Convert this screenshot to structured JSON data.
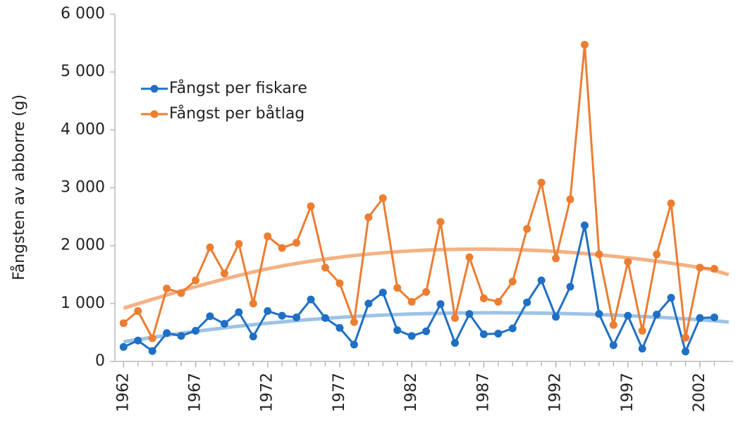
{
  "chart_data": {
    "type": "line",
    "ylabel": "Fångsten av abborre (g)",
    "x": [
      1962,
      1963,
      1964,
      1965,
      1966,
      1967,
      1968,
      1969,
      1970,
      1971,
      1972,
      1973,
      1974,
      1975,
      1976,
      1977,
      1978,
      1979,
      1980,
      1981,
      1982,
      1983,
      1984,
      1985,
      1986,
      1987,
      1988,
      1989,
      1990,
      1991,
      1992,
      1993,
      1994,
      1995,
      1996,
      1997,
      1998,
      1999,
      2000,
      2001,
      2002,
      2003
    ],
    "xlim": [
      1961.4,
      2004.3
    ],
    "xticks": [
      1962,
      1967,
      1972,
      1977,
      1982,
      1987,
      1992,
      1997,
      2002
    ],
    "ylim": [
      0,
      6000
    ],
    "yticks": [
      0,
      {
        "value": 1000,
        "label": "1 000"
      },
      {
        "value": 2000,
        "label": "2 000"
      },
      {
        "value": 3000,
        "label": "3 000"
      },
      {
        "value": 4000,
        "label": "4 000"
      },
      {
        "value": 5000,
        "label": "5 000"
      },
      {
        "value": 6000,
        "label": "6 000"
      }
    ],
    "grid": false,
    "legend": "upper left",
    "series": [
      {
        "name": "Fångst per fiskare",
        "color": "#1f6fc5",
        "values": [
          250,
          360,
          180,
          490,
          440,
          530,
          780,
          650,
          850,
          430,
          870,
          790,
          760,
          1070,
          750,
          580,
          290,
          1000,
          1190,
          540,
          440,
          520,
          990,
          320,
          820,
          470,
          480,
          570,
          1020,
          1400,
          770,
          1290,
          2350,
          820,
          280,
          790,
          220,
          810,
          1100,
          170,
          750,
          760
        ],
        "trend": {
          "color": "#9dc3e6",
          "x": [
            1962,
            1967,
            1972,
            1977,
            1982,
            1987,
            1992,
            1997,
            2002,
            2004
          ],
          "values": [
            340,
            520,
            660,
            760,
            820,
            840,
            830,
            790,
            720,
            680
          ]
        }
      },
      {
        "name": "Fångst per båtlag",
        "color": "#ed7d31",
        "values": [
          660,
          870,
          400,
          1260,
          1180,
          1400,
          1970,
          1520,
          2030,
          1000,
          2160,
          1960,
          2050,
          2680,
          1620,
          1350,
          680,
          2490,
          2820,
          1270,
          1030,
          1200,
          2410,
          750,
          1800,
          1090,
          1030,
          1380,
          2290,
          3090,
          1780,
          2800,
          5470,
          1850,
          630,
          1720,
          530,
          1850,
          2730,
          410,
          1620,
          1600
        ],
        "trend": {
          "color": "#f4b183",
          "x": [
            1962,
            1967,
            1972,
            1977,
            1982,
            1987,
            1992,
            1997,
            2002,
            2004
          ],
          "values": [
            920,
            1290,
            1600,
            1800,
            1910,
            1940,
            1900,
            1790,
            1620,
            1500
          ]
        }
      }
    ]
  }
}
